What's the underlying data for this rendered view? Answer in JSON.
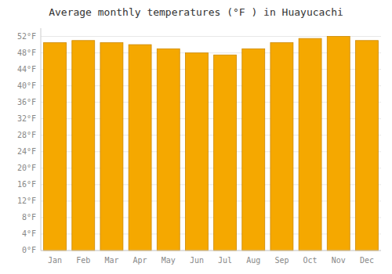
{
  "chart_data": {
    "type": "bar",
    "title": "Average monthly temperatures (°F ) in Huayucachi",
    "categories": [
      "Jan",
      "Feb",
      "Mar",
      "Apr",
      "May",
      "Jun",
      "Jul",
      "Aug",
      "Sep",
      "Oct",
      "Nov",
      "Dec"
    ],
    "values": [
      50.5,
      51.0,
      50.5,
      50.0,
      49.0,
      48.0,
      47.5,
      49.0,
      50.5,
      51.5,
      52.0,
      51.0
    ],
    "color": "#F5A800",
    "ylim": [
      0,
      54
    ],
    "yticks": [
      {
        "value": 0,
        "label": "0°F"
      },
      {
        "value": 4,
        "label": "4°F"
      },
      {
        "value": 8,
        "label": "8°F"
      },
      {
        "value": 12,
        "label": "12°F"
      },
      {
        "value": 16,
        "label": "16°F"
      },
      {
        "value": 20,
        "label": "20°F"
      },
      {
        "value": 24,
        "label": "24°F"
      },
      {
        "value": 28,
        "label": "28°F"
      },
      {
        "value": 32,
        "label": "32°F"
      },
      {
        "value": 36,
        "label": "36°F"
      },
      {
        "value": 40,
        "label": "40°F"
      },
      {
        "value": 44,
        "label": "44°F"
      },
      {
        "value": 48,
        "label": "48°F"
      },
      {
        "value": 52,
        "label": "52°F"
      }
    ],
    "grid": true
  }
}
